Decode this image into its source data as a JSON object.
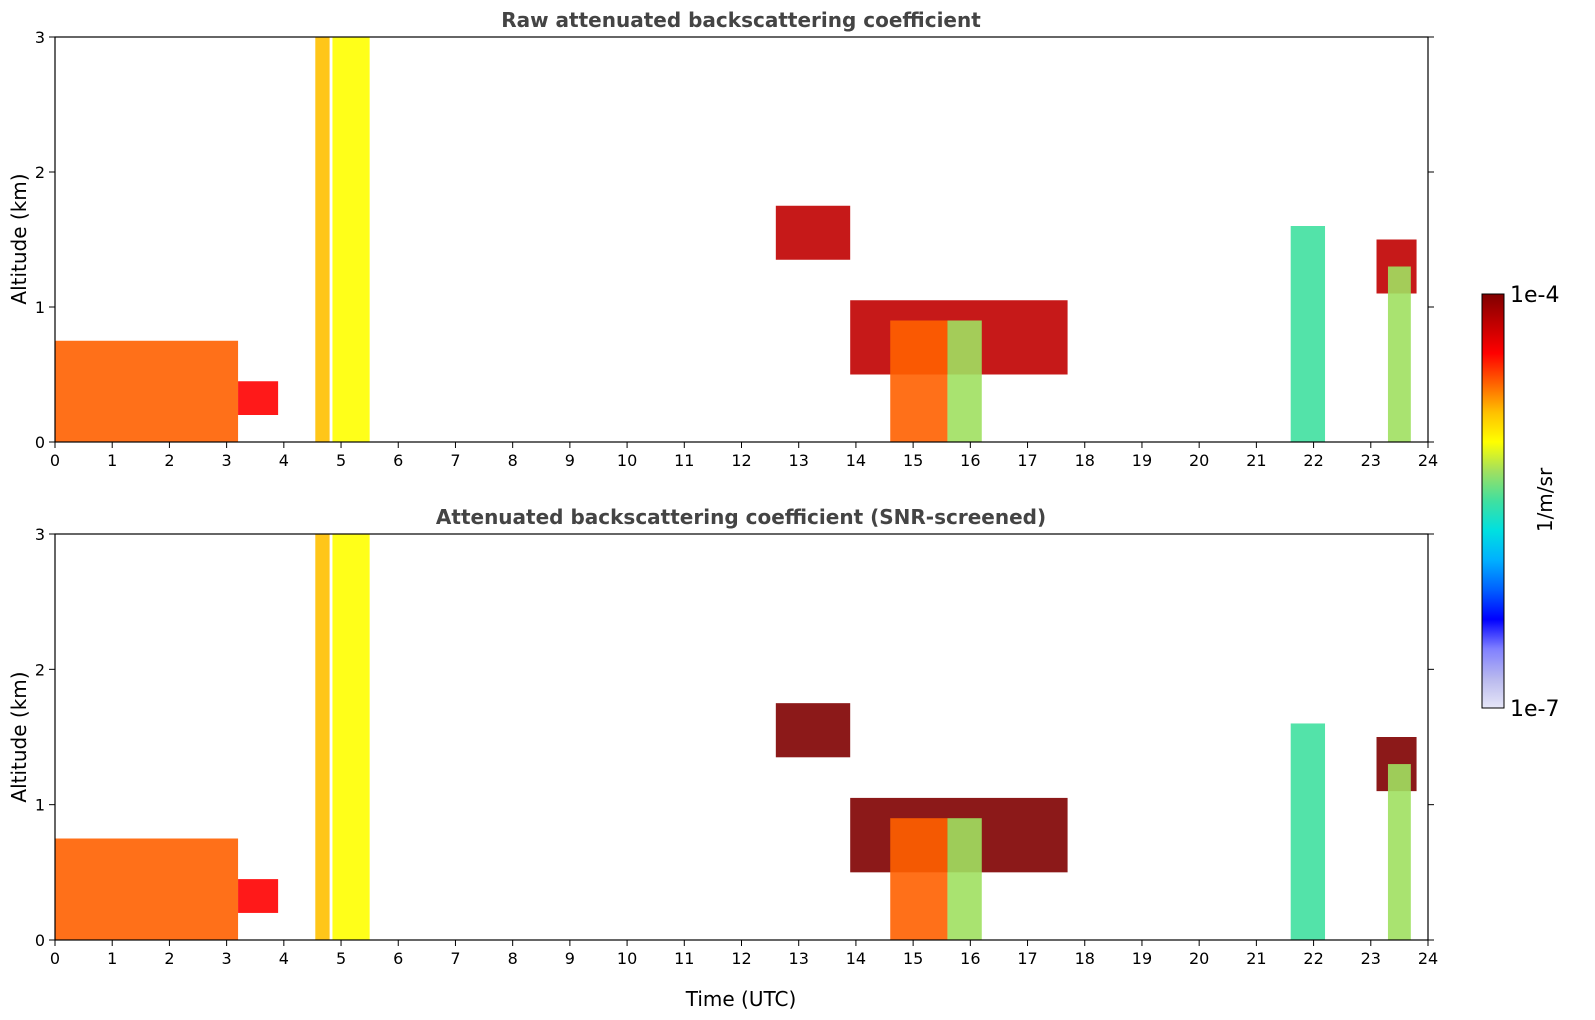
{
  "chart_data": [
    {
      "type": "heatmap",
      "title": "Raw attenuated backscattering coefficient",
      "xlabel": "",
      "ylabel": "Altitude (km)",
      "xlim": [
        0,
        24
      ],
      "ylim": [
        0,
        3
      ],
      "xticks": [
        "0",
        "1",
        "2",
        "3",
        "4",
        "5",
        "6",
        "7",
        "8",
        "9",
        "10",
        "11",
        "12",
        "13",
        "14",
        "15",
        "16",
        "17",
        "18",
        "19",
        "20",
        "21",
        "22",
        "23",
        "24"
      ],
      "yticks": [
        "0",
        "1",
        "2",
        "3"
      ],
      "features": [
        {
          "t0": 0.0,
          "t1": 3.2,
          "z0": 0.0,
          "z1": 0.75,
          "level": 0.78
        },
        {
          "t0": 3.2,
          "t1": 3.9,
          "z0": 0.2,
          "z1": 0.45,
          "level": 0.85
        },
        {
          "t0": 4.55,
          "t1": 4.8,
          "z0": 0.0,
          "z1": 3.0,
          "level": 0.7
        },
        {
          "t0": 4.85,
          "t1": 5.5,
          "z0": 0.0,
          "z1": 3.0,
          "level": 0.65
        },
        {
          "t0": 12.6,
          "t1": 13.9,
          "z0": 1.35,
          "z1": 1.75,
          "level": 0.95
        },
        {
          "t0": 13.9,
          "t1": 17.7,
          "z0": 0.5,
          "z1": 1.05,
          "level": 0.9
        },
        {
          "t0": 14.6,
          "t1": 15.6,
          "z0": 0.0,
          "z1": 0.9,
          "level": 0.82
        },
        {
          "t0": 15.6,
          "t1": 16.2,
          "z0": 0.0,
          "z1": 0.9,
          "level": 0.6
        },
        {
          "t0": 21.6,
          "t1": 22.2,
          "z0": 0.0,
          "z1": 1.6,
          "level": 0.5
        },
        {
          "t0": 23.1,
          "t1": 23.8,
          "z0": 1.1,
          "z1": 1.5,
          "level": 0.93
        },
        {
          "t0": 23.3,
          "t1": 23.7,
          "z0": 0.0,
          "z1": 1.3,
          "level": 0.55
        }
      ]
    },
    {
      "type": "heatmap",
      "title": "Attenuated backscattering coefficient (SNR-screened)",
      "xlabel": "Time (UTC)",
      "ylabel": "Altitude (km)",
      "xlim": [
        0,
        24
      ],
      "ylim": [
        0,
        3
      ],
      "xticks": [
        "0",
        "1",
        "2",
        "3",
        "4",
        "5",
        "6",
        "7",
        "8",
        "9",
        "10",
        "11",
        "12",
        "13",
        "14",
        "15",
        "16",
        "17",
        "18",
        "19",
        "20",
        "21",
        "22",
        "23",
        "24"
      ],
      "yticks": [
        "0",
        "1",
        "2",
        "3"
      ],
      "features": [
        {
          "t0": 0.0,
          "t1": 3.2,
          "z0": 0.0,
          "z1": 0.75,
          "level": 0.78
        },
        {
          "t0": 3.2,
          "t1": 3.9,
          "z0": 0.2,
          "z1": 0.45,
          "level": 0.85
        },
        {
          "t0": 4.55,
          "t1": 4.8,
          "z0": 0.0,
          "z1": 3.0,
          "level": 0.7
        },
        {
          "t0": 4.85,
          "t1": 5.5,
          "z0": 0.0,
          "z1": 3.0,
          "level": 0.65
        },
        {
          "t0": 12.6,
          "t1": 13.9,
          "z0": 1.35,
          "z1": 1.75,
          "level": 0.99
        },
        {
          "t0": 13.9,
          "t1": 17.7,
          "z0": 0.5,
          "z1": 1.05,
          "level": 0.99
        },
        {
          "t0": 14.6,
          "t1": 15.6,
          "z0": 0.0,
          "z1": 0.9,
          "level": 0.82
        },
        {
          "t0": 15.6,
          "t1": 16.2,
          "z0": 0.0,
          "z1": 0.9,
          "level": 0.6
        },
        {
          "t0": 21.6,
          "t1": 22.2,
          "z0": 0.0,
          "z1": 1.6,
          "level": 0.5
        },
        {
          "t0": 23.1,
          "t1": 23.8,
          "z0": 1.1,
          "z1": 1.5,
          "level": 0.99
        },
        {
          "t0": 23.3,
          "t1": 23.7,
          "z0": 0.0,
          "z1": 1.3,
          "level": 0.55
        }
      ]
    }
  ],
  "colorbar": {
    "label": "1/m/sr",
    "min_label": "1e-7",
    "max_label": "1e-4",
    "colors": [
      "#e6e6f7",
      "#b8b8ee",
      "#8080ff",
      "#0000ff",
      "#0060ff",
      "#00b0ff",
      "#00e0e0",
      "#40e0a0",
      "#a0e060",
      "#ffff00",
      "#ffc000",
      "#ff6000",
      "#ff0000",
      "#c00000",
      "#800000"
    ]
  }
}
